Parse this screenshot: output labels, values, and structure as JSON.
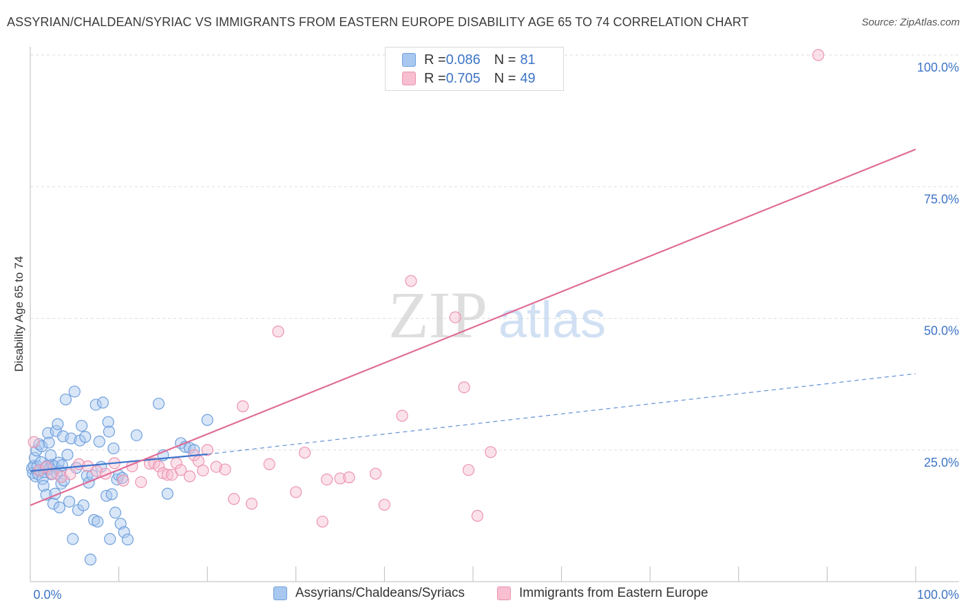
{
  "title": "ASSYRIAN/CHALDEAN/SYRIAC VS IMMIGRANTS FROM EASTERN EUROPE DISABILITY AGE 65 TO 74 CORRELATION CHART",
  "source": "Source: ZipAtlas.com",
  "watermark": {
    "zip": "ZIP",
    "atlas": "atlas"
  },
  "legend": [
    {
      "r_label": "R = ",
      "r_value": "0.086",
      "n_label": "N = ",
      "n_value": "81"
    },
    {
      "r_label": "R = ",
      "r_value": "0.705",
      "n_label": "N = ",
      "n_value": "49"
    }
  ],
  "colors": {
    "blue_fill": "#a8c8ef",
    "blue_stroke": "#6f9fdc",
    "blue_line": "#3a72cc",
    "pink_fill": "#f7bfd0",
    "pink_stroke": "#ec93b1",
    "pink_line": "#e06c97",
    "tick_label": "#3d74c6",
    "grid": "#dddddd"
  },
  "chart_data": {
    "type": "scatter",
    "title": "ASSYRIAN/CHALDEAN/SYRIAC VS IMMIGRANTS FROM EASTERN EUROPE DISABILITY AGE 65 TO 74 CORRELATION CHART",
    "xlabel": "",
    "ylabel": "Disability Age 65 to 74",
    "xlim": [
      0,
      100
    ],
    "ylim": [
      0,
      100
    ],
    "x_tick_labels": [
      "0.0%",
      "100.0%"
    ],
    "y_ticks": [
      25,
      50,
      75,
      100
    ],
    "y_tick_labels": [
      "25.0%",
      "50.0%",
      "75.0%",
      "100.0%"
    ],
    "grid": true,
    "legend_position": "top-center",
    "series": [
      {
        "name": "Assyrians/Chaldeans/Syriacs",
        "color": "#a8c8ef",
        "trend": {
          "x0": 0,
          "y0": 21.0,
          "x1": 20,
          "y1": 24.2,
          "extended_x1": 100,
          "extended_y1": 39.5
        },
        "points": [
          [
            0.2,
            21.5
          ],
          [
            0.3,
            20.6
          ],
          [
            0.4,
            22.0
          ],
          [
            0.5,
            23.5
          ],
          [
            0.6,
            20.0
          ],
          [
            0.7,
            24.9
          ],
          [
            0.8,
            21.9
          ],
          [
            0.9,
            20.4
          ],
          [
            1.0,
            26.1
          ],
          [
            1.1,
            21.2
          ],
          [
            1.2,
            22.7
          ],
          [
            1.3,
            25.7
          ],
          [
            1.4,
            19.5
          ],
          [
            1.5,
            18.2
          ],
          [
            1.6,
            20.8
          ],
          [
            1.7,
            21.5
          ],
          [
            1.8,
            16.5
          ],
          [
            1.9,
            22.0
          ],
          [
            2.0,
            28.2
          ],
          [
            2.1,
            26.4
          ],
          [
            2.2,
            21.4
          ],
          [
            2.3,
            24.0
          ],
          [
            2.4,
            20.4
          ],
          [
            2.5,
            22.2
          ],
          [
            2.6,
            14.8
          ],
          [
            2.7,
            21.9
          ],
          [
            2.8,
            16.7
          ],
          [
            2.9,
            28.6
          ],
          [
            3.0,
            20.5
          ],
          [
            3.1,
            29.9
          ],
          [
            3.2,
            22.6
          ],
          [
            3.3,
            14.1
          ],
          [
            3.4,
            21.0
          ],
          [
            3.5,
            18.6
          ],
          [
            3.6,
            22.1
          ],
          [
            3.7,
            27.6
          ],
          [
            3.8,
            19.2
          ],
          [
            4.0,
            34.6
          ],
          [
            4.2,
            24.1
          ],
          [
            4.4,
            15.2
          ],
          [
            4.6,
            27.2
          ],
          [
            4.8,
            8.1
          ],
          [
            5.0,
            36.1
          ],
          [
            5.2,
            21.6
          ],
          [
            5.4,
            13.6
          ],
          [
            5.6,
            26.8
          ],
          [
            5.8,
            29.6
          ],
          [
            6.0,
            14.5
          ],
          [
            6.2,
            27.5
          ],
          [
            6.4,
            20.1
          ],
          [
            6.6,
            18.8
          ],
          [
            6.8,
            4.2
          ],
          [
            7.0,
            20.2
          ],
          [
            7.2,
            11.7
          ],
          [
            7.4,
            33.6
          ],
          [
            7.6,
            11.4
          ],
          [
            7.8,
            26.6
          ],
          [
            8.0,
            21.8
          ],
          [
            8.2,
            34.0
          ],
          [
            8.6,
            16.3
          ],
          [
            8.8,
            30.3
          ],
          [
            8.9,
            28.5
          ],
          [
            9.0,
            8.1
          ],
          [
            9.2,
            16.6
          ],
          [
            9.4,
            25.3
          ],
          [
            9.6,
            13.1
          ],
          [
            9.8,
            19.4
          ],
          [
            10.0,
            20.2
          ],
          [
            10.2,
            11.0
          ],
          [
            10.4,
            19.7
          ],
          [
            10.6,
            9.4
          ],
          [
            11.0,
            8.0
          ],
          [
            12.0,
            27.8
          ],
          [
            14.5,
            33.8
          ],
          [
            15.0,
            24.0
          ],
          [
            15.5,
            16.7
          ],
          [
            17.0,
            26.3
          ],
          [
            17.5,
            25.6
          ],
          [
            18.0,
            25.4
          ],
          [
            18.5,
            25.0
          ],
          [
            20.0,
            30.7
          ]
        ]
      },
      {
        "name": "Immigrants from Eastern Europe",
        "color": "#f7bfd0",
        "trend": {
          "x0": 0,
          "y0": 14.5,
          "x1": 100,
          "y1": 82.1
        },
        "points": [
          [
            0.4,
            26.5
          ],
          [
            1.0,
            21.1
          ],
          [
            1.8,
            21.8
          ],
          [
            2.5,
            20.5
          ],
          [
            3.5,
            19.9
          ],
          [
            4.5,
            20.4
          ],
          [
            5.5,
            22.3
          ],
          [
            6.5,
            21.9
          ],
          [
            7.5,
            21.0
          ],
          [
            8.5,
            20.5
          ],
          [
            9.5,
            22.5
          ],
          [
            10.5,
            19.2
          ],
          [
            11.5,
            21.9
          ],
          [
            12.5,
            18.9
          ],
          [
            13.5,
            22.4
          ],
          [
            14.0,
            22.5
          ],
          [
            14.5,
            21.9
          ],
          [
            15.0,
            20.6
          ],
          [
            15.5,
            20.3
          ],
          [
            16.0,
            20.3
          ],
          [
            16.5,
            22.5
          ],
          [
            17.0,
            21.2
          ],
          [
            18.0,
            20.0
          ],
          [
            18.5,
            24.0
          ],
          [
            19.0,
            22.9
          ],
          [
            19.5,
            21.1
          ],
          [
            20.0,
            25.0
          ],
          [
            21.0,
            21.8
          ],
          [
            22.0,
            21.3
          ],
          [
            23.0,
            15.7
          ],
          [
            24.0,
            33.3
          ],
          [
            25.0,
            14.8
          ],
          [
            27.0,
            22.3
          ],
          [
            28.0,
            47.5
          ],
          [
            30.0,
            17.0
          ],
          [
            31.0,
            24.5
          ],
          [
            33.0,
            11.4
          ],
          [
            33.5,
            19.4
          ],
          [
            35.0,
            19.6
          ],
          [
            36.0,
            19.8
          ],
          [
            39.0,
            20.5
          ],
          [
            40.0,
            14.6
          ],
          [
            42.0,
            31.5
          ],
          [
            43.0,
            57.1
          ],
          [
            48.0,
            50.2
          ],
          [
            49.0,
            36.9
          ],
          [
            49.5,
            21.2
          ],
          [
            50.5,
            12.5
          ],
          [
            52.0,
            24.6
          ],
          [
            89.0,
            100.0
          ]
        ]
      }
    ]
  }
}
